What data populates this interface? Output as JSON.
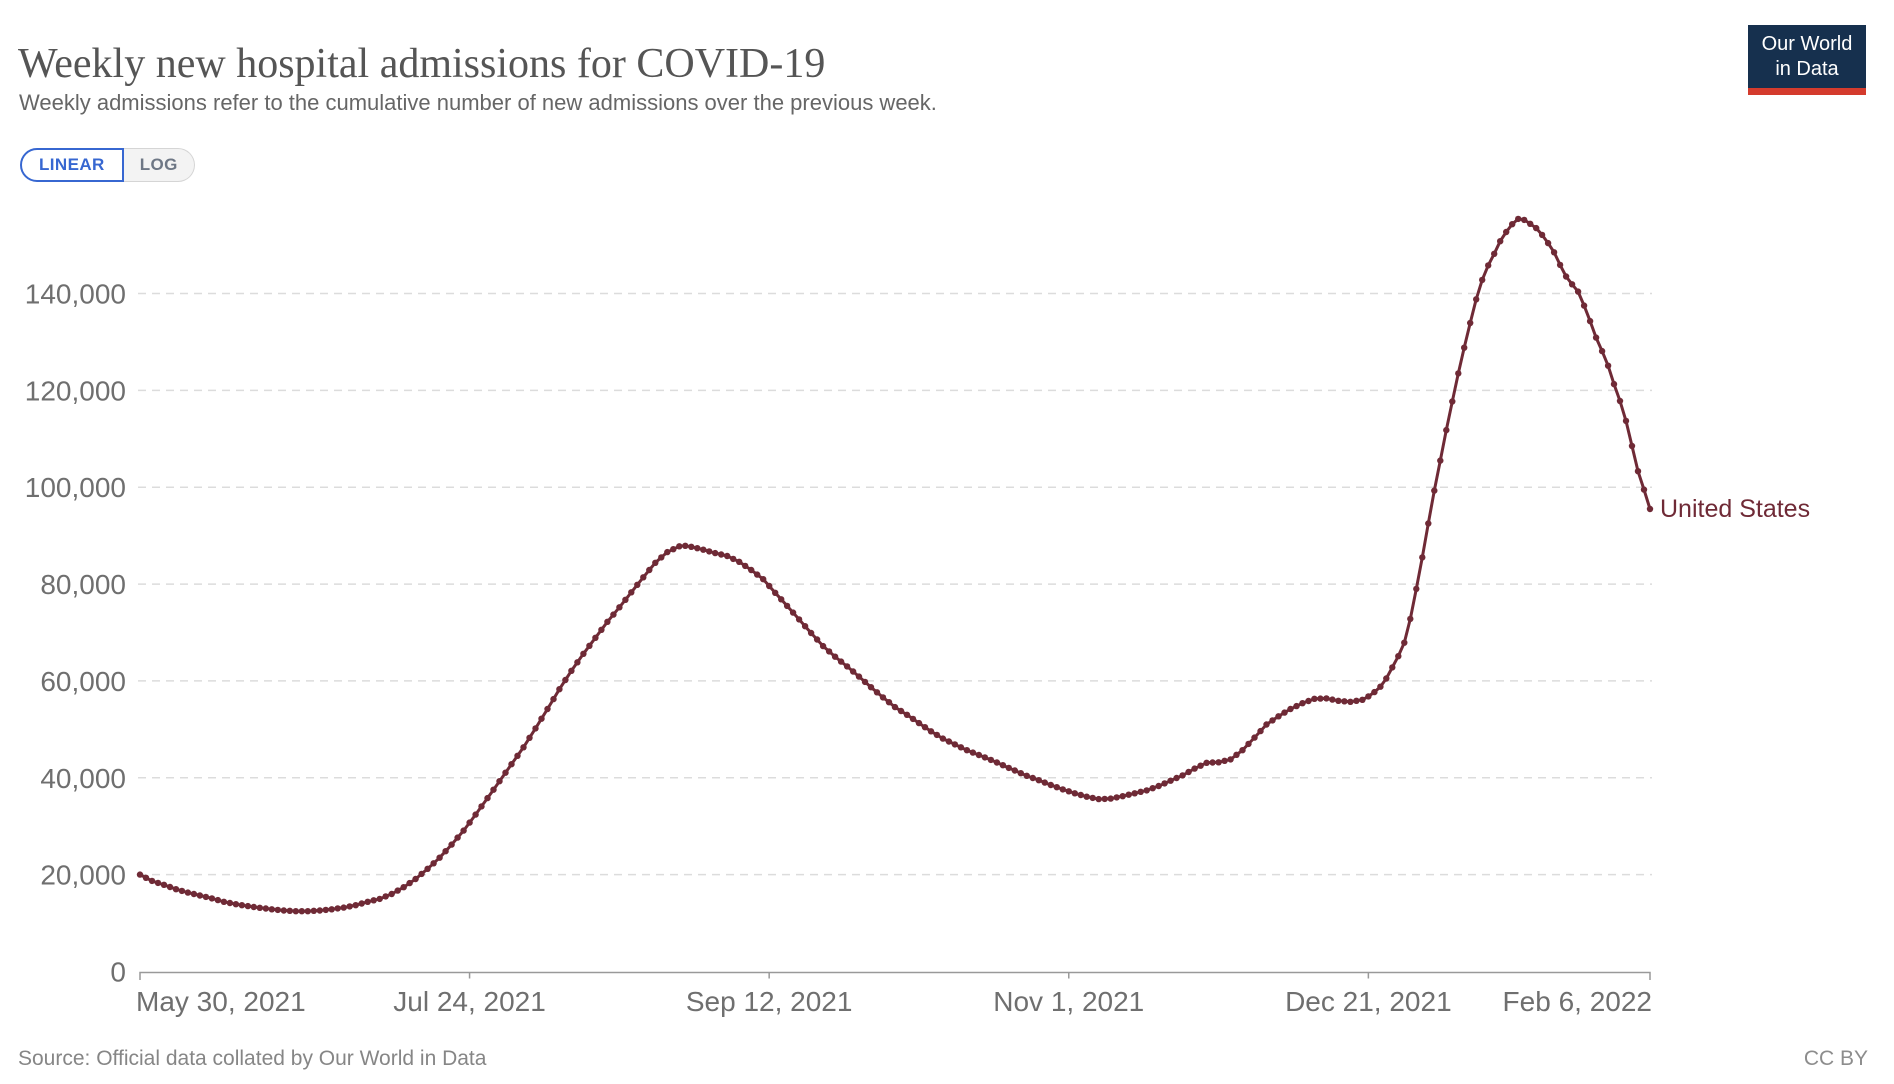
{
  "header": {
    "title": "Weekly new hospital admissions for COVID-19",
    "subtitle": "Weekly admissions refer to the cumulative number of new admissions over the previous week.",
    "logo_line1": "Our World",
    "logo_line2": "in Data"
  },
  "toolbar": {
    "linear_label": "LINEAR",
    "log_label": "LOG",
    "active_scale": "LINEAR"
  },
  "footer": {
    "source": "Source: Official data collated by Our World in Data",
    "license": "CC BY"
  },
  "colors": {
    "series": "#6f2a36",
    "accent_blue": "#3767d1",
    "logo_navy": "#16304e",
    "logo_red": "#d43b2d",
    "gridline": "#dcdcdc",
    "axis": "#999999",
    "tick_label": "#6f6f6f"
  },
  "chart_data": {
    "type": "line",
    "title": "Weekly new hospital admissions for COVID-19",
    "xlabel": "",
    "ylabel": "",
    "grid": true,
    "x_unit": "days since May 30, 2021",
    "x_range": [
      0,
      252
    ],
    "y_range": [
      0,
      156000
    ],
    "x_ticks": [
      {
        "day": 0,
        "label": "May 30, 2021",
        "align": "start"
      },
      {
        "day": 55,
        "label": "Jul 24, 2021",
        "align": "middle"
      },
      {
        "day": 105,
        "label": "Sep 12, 2021",
        "align": "middle"
      },
      {
        "day": 155,
        "label": "Nov 1, 2021",
        "align": "middle"
      },
      {
        "day": 205,
        "label": "Dec 21, 2021",
        "align": "middle"
      },
      {
        "day": 252,
        "label": "Feb 6, 2022",
        "align": "end"
      }
    ],
    "y_ticks": [
      {
        "value": 0,
        "label": "0"
      },
      {
        "value": 20000,
        "label": "20,000"
      },
      {
        "value": 40000,
        "label": "40,000"
      },
      {
        "value": 60000,
        "label": "60,000"
      },
      {
        "value": 80000,
        "label": "80,000"
      },
      {
        "value": 100000,
        "label": "100,000"
      },
      {
        "value": 120000,
        "label": "120,000"
      },
      {
        "value": 140000,
        "label": "140,000"
      }
    ],
    "series": [
      {
        "name": "United States",
        "color": "#6f2a36",
        "points": [
          [
            0,
            20000
          ],
          [
            2,
            18700
          ],
          [
            4,
            17900
          ],
          [
            6,
            17000
          ],
          [
            8,
            16300
          ],
          [
            10,
            15700
          ],
          [
            12,
            15100
          ],
          [
            14,
            14400
          ],
          [
            16,
            13900
          ],
          [
            18,
            13500
          ],
          [
            20,
            13150
          ],
          [
            22,
            12850
          ],
          [
            24,
            12600
          ],
          [
            26,
            12450
          ],
          [
            28,
            12450
          ],
          [
            30,
            12600
          ],
          [
            32,
            12850
          ],
          [
            34,
            13200
          ],
          [
            36,
            13700
          ],
          [
            38,
            14400
          ],
          [
            40,
            15000
          ],
          [
            42,
            16000
          ],
          [
            44,
            17400
          ],
          [
            46,
            19100
          ],
          [
            48,
            21200
          ],
          [
            50,
            23500
          ],
          [
            52,
            26200
          ],
          [
            54,
            29100
          ],
          [
            56,
            32400
          ],
          [
            58,
            35800
          ],
          [
            60,
            39300
          ],
          [
            62,
            42800
          ],
          [
            64,
            46300
          ],
          [
            66,
            50200
          ],
          [
            68,
            54200
          ],
          [
            70,
            58300
          ],
          [
            72,
            62100
          ],
          [
            74,
            65600
          ],
          [
            76,
            68900
          ],
          [
            78,
            72200
          ],
          [
            80,
            75200
          ],
          [
            82,
            78300
          ],
          [
            84,
            81400
          ],
          [
            86,
            84400
          ],
          [
            88,
            86600
          ],
          [
            90,
            87800
          ],
          [
            91,
            87900
          ],
          [
            92,
            87700
          ],
          [
            94,
            87100
          ],
          [
            96,
            86400
          ],
          [
            98,
            85800
          ],
          [
            100,
            84600
          ],
          [
            102,
            82900
          ],
          [
            104,
            81000
          ],
          [
            105,
            79600
          ],
          [
            106,
            78200
          ],
          [
            108,
            75500
          ],
          [
            110,
            72700
          ],
          [
            112,
            69900
          ],
          [
            114,
            67200
          ],
          [
            116,
            65000
          ],
          [
            118,
            63000
          ],
          [
            120,
            60900
          ],
          [
            122,
            58700
          ],
          [
            124,
            56600
          ],
          [
            126,
            54600
          ],
          [
            128,
            53000
          ],
          [
            130,
            51300
          ],
          [
            132,
            49600
          ],
          [
            134,
            48100
          ],
          [
            136,
            46900
          ],
          [
            138,
            45700
          ],
          [
            140,
            44700
          ],
          [
            142,
            43700
          ],
          [
            144,
            42600
          ],
          [
            146,
            41500
          ],
          [
            148,
            40400
          ],
          [
            150,
            39500
          ],
          [
            152,
            38500
          ],
          [
            154,
            37600
          ],
          [
            156,
            36800
          ],
          [
            158,
            36100
          ],
          [
            160,
            35600
          ],
          [
            162,
            35700
          ],
          [
            164,
            36200
          ],
          [
            166,
            36800
          ],
          [
            168,
            37400
          ],
          [
            170,
            38300
          ],
          [
            172,
            39400
          ],
          [
            174,
            40500
          ],
          [
            176,
            41900
          ],
          [
            178,
            43100
          ],
          [
            180,
            43200
          ],
          [
            182,
            43800
          ],
          [
            184,
            45700
          ],
          [
            186,
            48300
          ],
          [
            188,
            51000
          ],
          [
            190,
            52700
          ],
          [
            192,
            54200
          ],
          [
            194,
            55400
          ],
          [
            196,
            56300
          ],
          [
            198,
            56400
          ],
          [
            200,
            55900
          ],
          [
            202,
            55700
          ],
          [
            204,
            56100
          ],
          [
            205,
            56800
          ],
          [
            206,
            57700
          ],
          [
            207,
            58800
          ],
          [
            208,
            60500
          ],
          [
            209,
            62800
          ],
          [
            210,
            65100
          ],
          [
            211,
            67900
          ],
          [
            212,
            72800
          ],
          [
            213,
            79000
          ],
          [
            214,
            85500
          ],
          [
            215,
            92500
          ],
          [
            216,
            99300
          ],
          [
            217,
            105500
          ],
          [
            218,
            111800
          ],
          [
            219,
            117700
          ],
          [
            220,
            123500
          ],
          [
            221,
            128800
          ],
          [
            222,
            133900
          ],
          [
            223,
            138800
          ],
          [
            224,
            142800
          ],
          [
            225,
            145800
          ],
          [
            226,
            148200
          ],
          [
            227,
            150800
          ],
          [
            228,
            152700
          ],
          [
            229,
            154300
          ],
          [
            230,
            155400
          ],
          [
            231,
            155200
          ],
          [
            232,
            154400
          ],
          [
            233,
            153500
          ],
          [
            234,
            152100
          ],
          [
            235,
            150400
          ],
          [
            236,
            148500
          ],
          [
            237,
            145900
          ],
          [
            238,
            143500
          ],
          [
            239,
            141900
          ],
          [
            240,
            140400
          ],
          [
            241,
            137500
          ],
          [
            242,
            134300
          ],
          [
            243,
            130900
          ],
          [
            244,
            128100
          ],
          [
            245,
            125100
          ],
          [
            246,
            121300
          ],
          [
            247,
            117800
          ],
          [
            248,
            113700
          ],
          [
            249,
            108500
          ],
          [
            250,
            103300
          ],
          [
            251,
            99500
          ],
          [
            252,
            95500
          ]
        ]
      }
    ],
    "legend": "entity label at line end"
  }
}
